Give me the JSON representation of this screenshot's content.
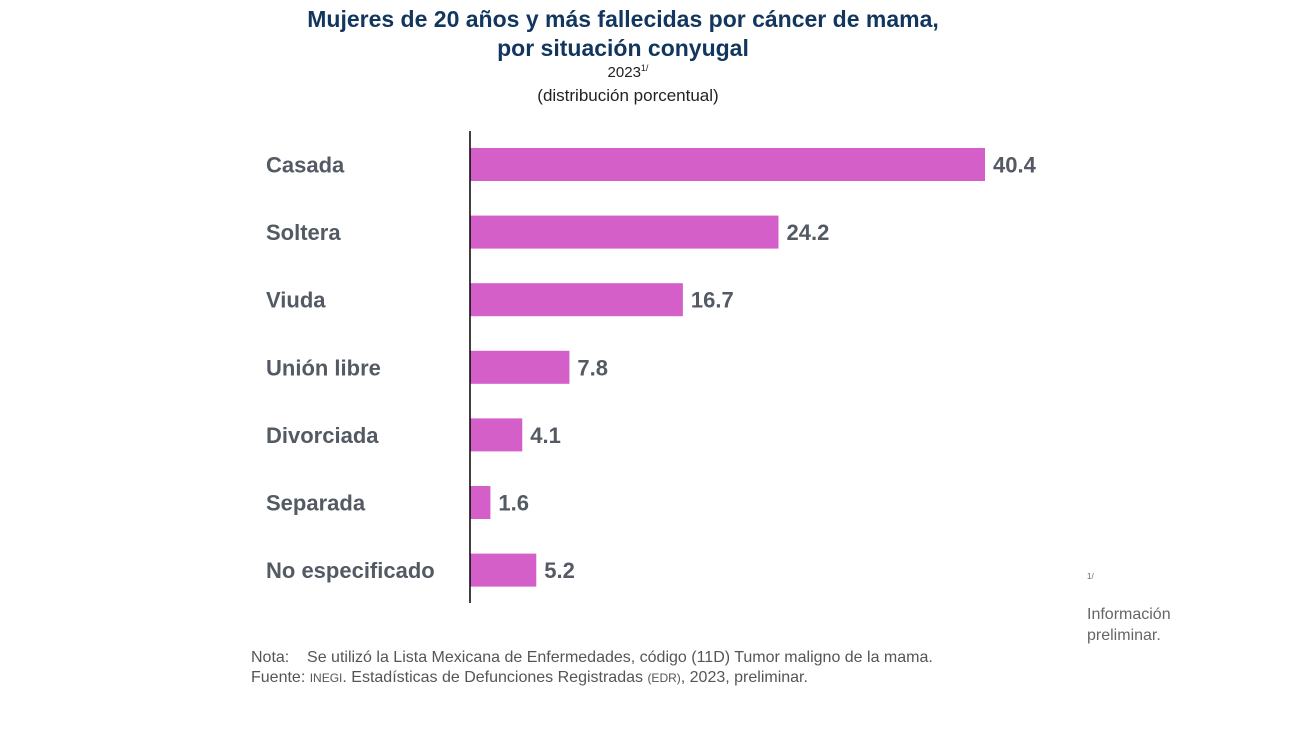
{
  "chart_data": {
    "type": "bar",
    "orientation": "horizontal",
    "title": "Mujeres de 20 años y más fallecidas por cáncer de mama,",
    "title_line2": "por situación conyugal",
    "year": "2023",
    "year_note": "1/",
    "subtitle": "(distribución porcentual)",
    "categories": [
      "Casada",
      "Soltera",
      "Viuda",
      "Unión libre",
      "Divorciada",
      "Separada",
      "No especificado"
    ],
    "values": [
      40.4,
      24.2,
      16.7,
      7.8,
      4.1,
      1.6,
      5.2
    ],
    "value_labels": [
      "40.4",
      "24.2",
      "16.7",
      "7.8",
      "4.1",
      "1.6",
      "5.2"
    ],
    "xlim": [
      0,
      45
    ],
    "grid": false,
    "legend": "none",
    "colors": {
      "bar": "#d45fc9",
      "title": "#12365e",
      "label": "#545a63"
    }
  },
  "notes": {
    "nota_label": "Nota:",
    "nota_text": "Se utilizó la Lista Mexicana de Enfermedades, código (11D) Tumor maligno de la mama.",
    "fuente_label": "Fuente:",
    "fuente_inegi": "INEGI",
    "fuente_text1": ". Estadísticas de Defunciones Registradas ",
    "fuente_edr": "(EDR)",
    "fuente_text2": ", 2023, preliminar."
  },
  "footnote": {
    "mark": "1/",
    "text1": "Información",
    "text2": "preliminar."
  }
}
